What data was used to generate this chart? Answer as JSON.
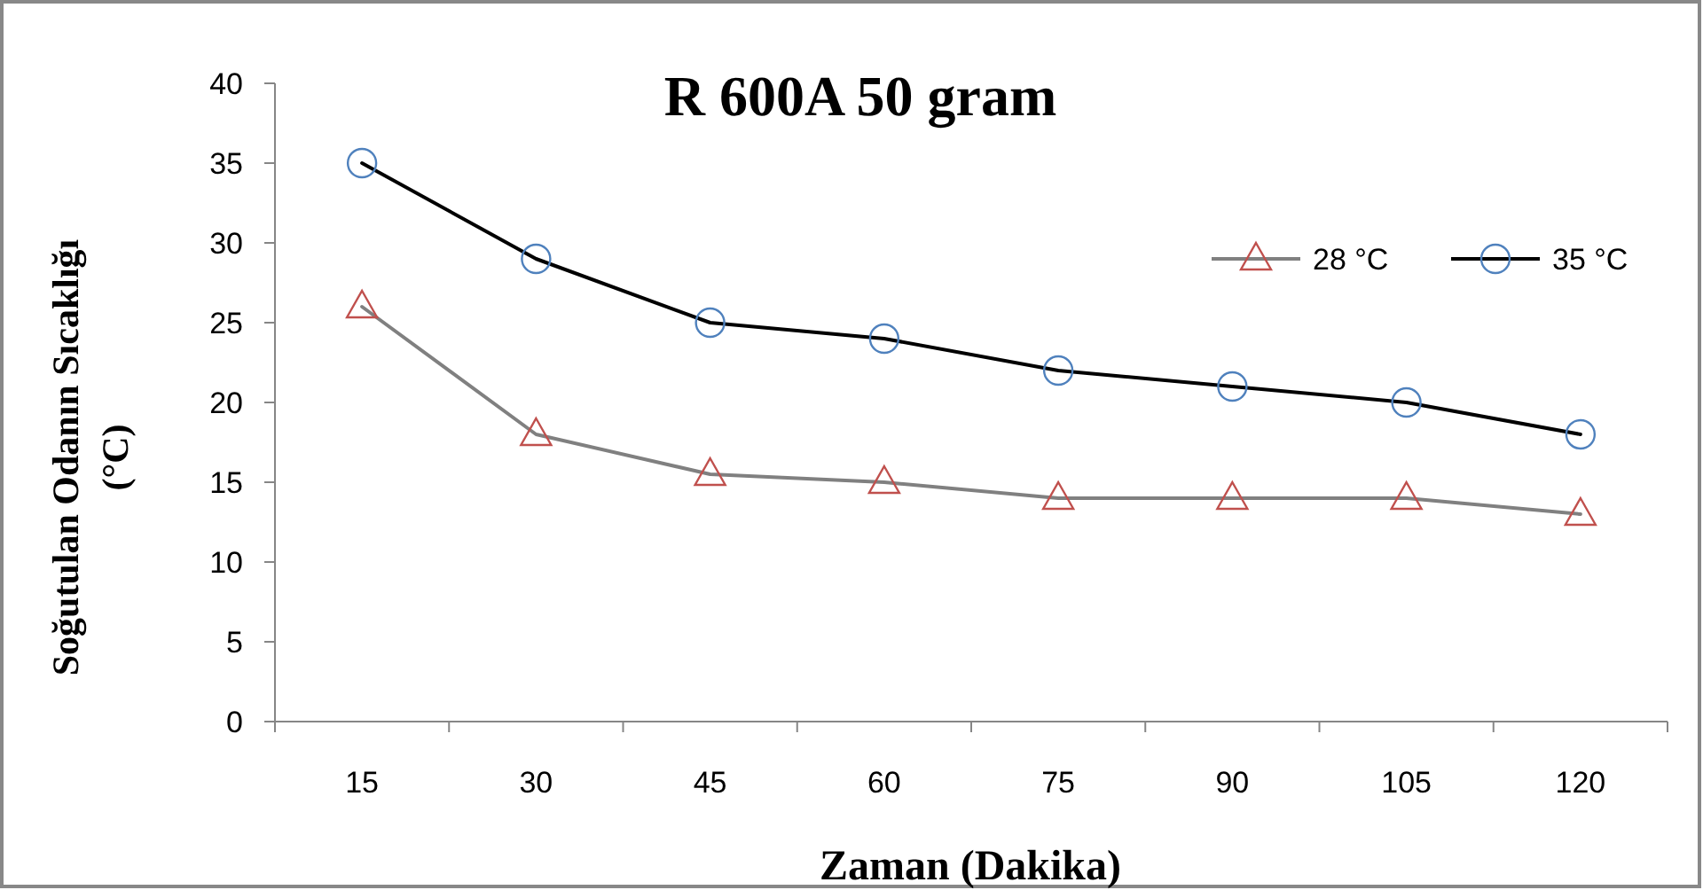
{
  "chart_data": {
    "type": "line",
    "title": "R 600A 50 gram",
    "xlabel": "Zaman (Dakika)",
    "ylabel": "Soğutulan Odanın Sıcaklığı\n(°C)",
    "categories": [
      "15",
      "30",
      "45",
      "60",
      "75",
      "90",
      "105",
      "120"
    ],
    "series": [
      {
        "name": "28 °C",
        "color": "#808080",
        "colors": [
          "#c0504d",
          "#c0504d",
          "#c0504d",
          "#c0504d",
          "#c0504d",
          "#c0504d",
          "#c0504d",
          "#c0504d"
        ],
        "marker": "triangle",
        "values": [
          26,
          18,
          15.5,
          15,
          14,
          14,
          14,
          13
        ]
      },
      {
        "name": "35 °C",
        "color": "#000000",
        "colors": [
          "#4f81bd",
          "#4f81bd",
          "#4f81bd",
          "#4f81bd",
          "#4f81bd",
          "#4f81bd",
          "#4f81bd",
          "#4f81bd"
        ],
        "marker": "circle",
        "values": [
          35,
          29,
          25,
          24,
          22,
          21,
          20,
          18
        ]
      }
    ],
    "ylim": [
      0,
      40
    ],
    "yticks": [
      0,
      5,
      10,
      15,
      20,
      25,
      30,
      35,
      40
    ],
    "grid": false,
    "legend": "top right",
    "line_style": "solid"
  }
}
